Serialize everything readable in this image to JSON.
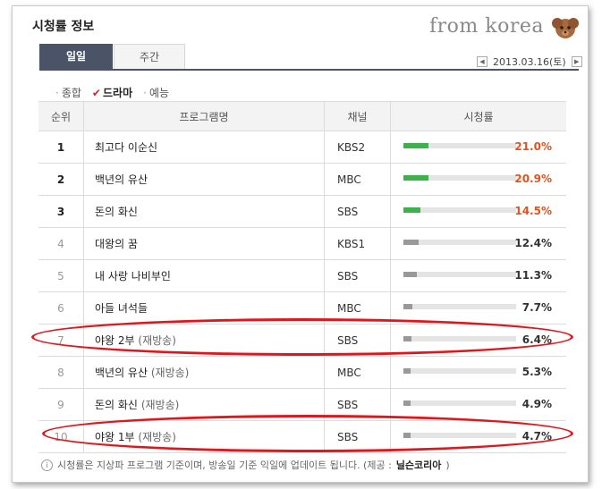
{
  "header": {
    "title": "시청률 정보",
    "watermark": "from korea"
  },
  "tabs": [
    {
      "label": "일일",
      "active": true
    },
    {
      "label": "주간",
      "active": false
    }
  ],
  "date": {
    "prev": "◀",
    "value": "2013.03.16(토)",
    "next": "▶"
  },
  "filters": {
    "all": "종합",
    "drama": "드라마",
    "variety": "예능",
    "selected": "드라마"
  },
  "table": {
    "headers": {
      "rank": "순위",
      "program": "프로그램명",
      "channel": "채널",
      "rating": "시청률"
    },
    "rows": [
      {
        "rank": "1",
        "program": "최고다 이순신",
        "rerun": "",
        "channel": "KBS2",
        "rating": "21.0%",
        "value": 21.0,
        "highlight": true
      },
      {
        "rank": "2",
        "program": "백년의 유산",
        "rerun": "",
        "channel": "MBC",
        "rating": "20.9%",
        "value": 20.9,
        "highlight": true
      },
      {
        "rank": "3",
        "program": "돈의 화신",
        "rerun": "",
        "channel": "SBS",
        "rating": "14.5%",
        "value": 14.5,
        "highlight": true
      },
      {
        "rank": "4",
        "program": "대왕의 꿈",
        "rerun": "",
        "channel": "KBS1",
        "rating": "12.4%",
        "value": 12.4,
        "highlight": false
      },
      {
        "rank": "5",
        "program": "내 사랑 나비부인",
        "rerun": "",
        "channel": "SBS",
        "rating": "11.3%",
        "value": 11.3,
        "highlight": false
      },
      {
        "rank": "6",
        "program": "아들 녀석들",
        "rerun": "",
        "channel": "MBC",
        "rating": "7.7%",
        "value": 7.7,
        "highlight": false
      },
      {
        "rank": "7",
        "program": "야왕 2부",
        "rerun": "(재방송)",
        "channel": "SBS",
        "rating": "6.4%",
        "value": 6.4,
        "highlight": false
      },
      {
        "rank": "8",
        "program": "백년의 유산",
        "rerun": "(재방송)",
        "channel": "MBC",
        "rating": "5.3%",
        "value": 5.3,
        "highlight": false
      },
      {
        "rank": "9",
        "program": "돈의 화신",
        "rerun": "(재방송)",
        "channel": "SBS",
        "rating": "4.9%",
        "value": 4.9,
        "highlight": false
      },
      {
        "rank": "10",
        "program": "야왕 1부",
        "rerun": "(재방송)",
        "channel": "SBS",
        "rating": "4.7%",
        "value": 4.7,
        "highlight": false
      }
    ]
  },
  "footer": {
    "note": "시청률은 지상파 프로그램 기준이며, 방송일 기준 익일에 업데이트 됩니다. (제공 :",
    "source": "닐슨코리아",
    "close": ")"
  },
  "colors": {
    "tab_active": "#4a5466",
    "bar_top": "#3bb34a",
    "bar_rest": "#999999",
    "rating_top": "#e0531f",
    "circle": "#e0161c"
  },
  "icons": {
    "date_prev": "caret-left-icon",
    "date_next": "caret-right-icon",
    "info": "info-icon",
    "drama_check": "check-icon"
  }
}
